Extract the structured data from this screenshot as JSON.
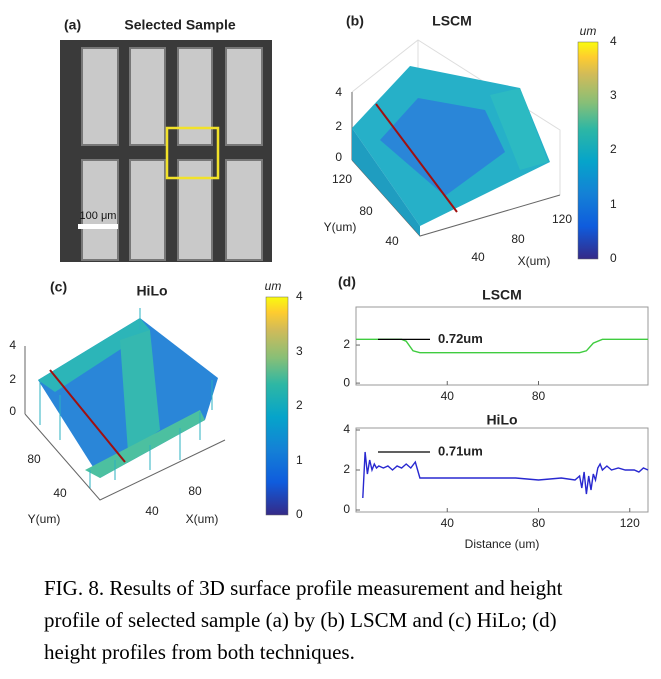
{
  "panel_a": {
    "label": "(a)",
    "title": "Selected Sample",
    "scale_bar": "100 μm"
  },
  "panel_b": {
    "label": "(b)",
    "title": "LSCM",
    "z_ticks": [
      0,
      2,
      4
    ],
    "y_label": "Y(um)",
    "y_ticks": [
      40,
      80,
      120
    ],
    "x_label": "X(um)",
    "x_ticks": [
      40,
      80,
      120
    ],
    "colorbar_label": "um",
    "colorbar_ticks": [
      0,
      1,
      2,
      3,
      4
    ]
  },
  "panel_c": {
    "label": "(c)",
    "title": "HiLo",
    "z_ticks": [
      0,
      2,
      4
    ],
    "y_label": "Y(um)",
    "y_ticks": [
      40,
      80
    ],
    "x_label": "X(um)",
    "x_ticks": [
      40,
      80
    ],
    "colorbar_label": "um",
    "colorbar_ticks": [
      0,
      1,
      2,
      3,
      4
    ]
  },
  "panel_d": {
    "label": "(d)"
  },
  "chart_data": [
    {
      "type": "line",
      "title": "LSCM",
      "annotation": "0.72um",
      "x": [
        0,
        20,
        22,
        25,
        28,
        60,
        98,
        101,
        104,
        108,
        128
      ],
      "series": [
        {
          "color": "#3fcc3f",
          "values": [
            2.3,
            2.3,
            2.2,
            1.7,
            1.6,
            1.6,
            1.6,
            1.7,
            2.1,
            2.3,
            2.3
          ]
        }
      ],
      "xlim": [
        0,
        128
      ],
      "ylim": [
        -0.1,
        4
      ],
      "xticks": [
        40,
        80
      ],
      "yticks": [
        0,
        2
      ]
    },
    {
      "type": "line",
      "title": "HiLo",
      "annotation": "0.71um",
      "xlabel": "Distance (um)",
      "x": [
        3,
        4,
        5,
        6,
        7,
        8,
        9,
        10,
        12,
        14,
        16,
        18,
        20,
        22,
        24,
        26,
        27,
        28,
        30,
        40,
        50,
        60,
        70,
        80,
        90,
        96,
        98,
        99,
        100,
        101,
        102,
        103,
        104,
        105,
        106,
        107,
        108,
        110,
        112,
        115,
        118,
        120,
        122,
        124,
        126,
        128
      ],
      "series": [
        {
          "color": "#2828d0",
          "values": [
            0.6,
            2.9,
            1.8,
            2.5,
            2.0,
            2.3,
            2.1,
            2.2,
            2.1,
            2.2,
            2.0,
            2.2,
            2.1,
            2.3,
            2.1,
            2.4,
            2.0,
            1.6,
            1.6,
            1.6,
            1.6,
            1.6,
            1.6,
            1.5,
            1.6,
            1.5,
            1.7,
            1.1,
            1.9,
            0.8,
            1.7,
            1.0,
            1.8,
            1.5,
            2.1,
            2.3,
            2.0,
            2.2,
            2.0,
            2.1,
            2.0,
            2.0,
            2.0,
            1.9,
            2.1,
            2.0
          ]
        }
      ],
      "xlim": [
        0,
        128
      ],
      "ylim": [
        -0.1,
        4.1
      ],
      "xticks": [
        40,
        80,
        120
      ],
      "yticks": [
        0,
        2,
        4
      ]
    }
  ],
  "caption": {
    "lines": [
      "FIG. 8. Results of 3D surface profile measurement and height",
      "profile of selected sample (a) by (b) LSCM and (c) HiLo; (d)",
      "height profiles from both techniques."
    ]
  }
}
